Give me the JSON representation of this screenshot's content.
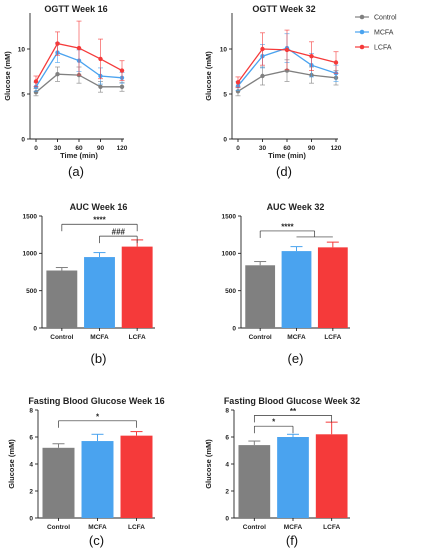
{
  "colors": {
    "Control": "#808080",
    "MCFA": "#4aa3ef",
    "LCFA": "#f53a3a"
  },
  "legend": [
    "Control",
    "MCFA",
    "LCFA"
  ],
  "chart_data": [
    {
      "id": "a",
      "panel_label": "(a)",
      "type": "line",
      "title": "OGTT Week 16",
      "xlabel": "Time (min)",
      "ylabel": "Glucose (mM)",
      "x": [
        0,
        30,
        60,
        90,
        120
      ],
      "xlim": [
        0,
        120
      ],
      "ylim": [
        0,
        14
      ],
      "xticks": [
        0,
        30,
        60,
        90,
        120
      ],
      "yticks": [
        0,
        5,
        10
      ],
      "series": [
        {
          "name": "Control",
          "values": [
            5.2,
            7.2,
            7.1,
            5.8,
            5.8
          ],
          "errors": [
            0.4,
            0.8,
            0.9,
            0.6,
            0.5
          ]
        },
        {
          "name": "MCFA",
          "values": [
            5.8,
            9.6,
            8.7,
            7.0,
            6.8
          ],
          "errors": [
            0.5,
            1.1,
            1.2,
            0.9,
            0.6
          ]
        },
        {
          "name": "LCFA",
          "values": [
            6.4,
            10.6,
            10.1,
            8.9,
            7.6
          ],
          "errors": [
            0.6,
            1.3,
            3.0,
            2.2,
            1.1
          ]
        }
      ]
    },
    {
      "id": "d",
      "panel_label": "(d)",
      "type": "line",
      "title": "OGTT Week 32",
      "xlabel": "Time (min)",
      "ylabel": "Glucose (mM)",
      "x": [
        0,
        30,
        60,
        90,
        120
      ],
      "xlim": [
        0,
        120
      ],
      "ylim": [
        0,
        14
      ],
      "xticks": [
        0,
        30,
        60,
        90,
        120
      ],
      "yticks": [
        0,
        5,
        10
      ],
      "series": [
        {
          "name": "Control",
          "values": [
            5.3,
            7.0,
            7.6,
            7.1,
            6.8
          ],
          "errors": [
            0.5,
            1.0,
            1.2,
            0.9,
            0.8
          ]
        },
        {
          "name": "MCFA",
          "values": [
            5.9,
            9.2,
            10.1,
            8.2,
            7.3
          ],
          "errors": [
            0.5,
            1.3,
            1.6,
            1.3,
            0.9
          ]
        },
        {
          "name": "LCFA",
          "values": [
            6.3,
            10.0,
            9.9,
            9.2,
            8.5
          ],
          "errors": [
            0.6,
            1.8,
            2.2,
            1.6,
            1.2
          ]
        }
      ]
    },
    {
      "id": "b",
      "panel_label": "(b)",
      "type": "bar",
      "title": "AUC Week 16",
      "categories": [
        "Control",
        "MCFA",
        "LCFA"
      ],
      "values": [
        770,
        950,
        1090
      ],
      "errors": [
        40,
        60,
        90
      ],
      "ylabel": "",
      "ylim": [
        0,
        1500
      ],
      "yticks": [
        0,
        500,
        1000,
        1500
      ],
      "annotations": [
        {
          "text": "****",
          "from": 0,
          "to": 2,
          "level": 1390
        },
        {
          "text": "###",
          "from": 1,
          "to": 2,
          "level": 1230
        }
      ]
    },
    {
      "id": "e",
      "panel_label": "(e)",
      "type": "bar",
      "title": "AUC Week 32",
      "categories": [
        "Control",
        "MCFA",
        "LCFA"
      ],
      "values": [
        840,
        1030,
        1080
      ],
      "errors": [
        50,
        60,
        70
      ],
      "ylabel": "",
      "ylim": [
        0,
        1500
      ],
      "yticks": [
        0,
        500,
        1000,
        1500
      ],
      "annotations": [
        {
          "text": "****",
          "from": 0,
          "to": 1.5,
          "level": 1300,
          "group_to": [
            1,
            2
          ]
        }
      ]
    },
    {
      "id": "c",
      "panel_label": "(c)",
      "type": "bar",
      "title": "Fasting Blood Glucose Week 16",
      "categories": [
        "Control",
        "MCFA",
        "LCFA"
      ],
      "values": [
        5.2,
        5.7,
        6.1
      ],
      "errors": [
        0.3,
        0.5,
        0.3
      ],
      "ylabel": "Glucose (mM)",
      "ylim": [
        0,
        8
      ],
      "yticks": [
        0,
        2,
        4,
        6,
        8
      ],
      "annotations": [
        {
          "text": "*",
          "from": 0,
          "to": 2,
          "level": 7.2
        }
      ]
    },
    {
      "id": "f",
      "panel_label": "(f)",
      "type": "bar",
      "title": "Fasting Blood Glucose Week 32",
      "categories": [
        "Control",
        "MCFA",
        "LCFA"
      ],
      "values": [
        5.4,
        6.0,
        6.2
      ],
      "errors": [
        0.3,
        0.2,
        0.9
      ],
      "ylabel": "Glucose (mM)",
      "ylim": [
        0,
        8
      ],
      "yticks": [
        0,
        2,
        4,
        6,
        8
      ],
      "annotations": [
        {
          "text": "*",
          "from": 0,
          "to": 1,
          "level": 6.8
        },
        {
          "text": "**",
          "from": 0,
          "to": 2,
          "level": 7.6
        }
      ]
    }
  ]
}
